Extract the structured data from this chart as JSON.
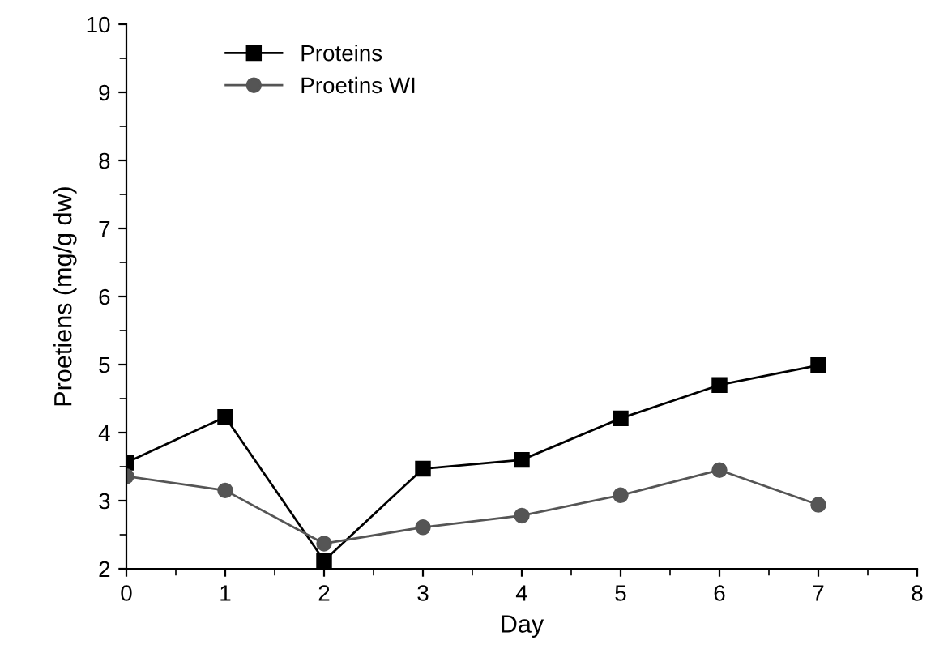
{
  "chart_data": {
    "type": "line",
    "xlabel": "Day",
    "ylabel": "Proetiens (mg/g dw)",
    "x": [
      0,
      1,
      2,
      3,
      4,
      5,
      6,
      7
    ],
    "series": [
      {
        "name": "Proteins",
        "color": "#000000",
        "marker": "square",
        "values": [
          3.56,
          4.23,
          2.12,
          3.47,
          3.6,
          4.21,
          4.7,
          4.99
        ]
      },
      {
        "name": "Proetins WI",
        "color": "#555555",
        "marker": "circle",
        "values": [
          3.36,
          3.15,
          2.37,
          2.61,
          2.78,
          3.08,
          3.45,
          2.94
        ]
      }
    ],
    "xlim": [
      0,
      8
    ],
    "xticks": [
      0,
      1,
      2,
      3,
      4,
      5,
      6,
      7,
      8
    ],
    "ylim": [
      2,
      10
    ],
    "yticks": [
      2,
      3,
      4,
      5,
      6,
      7,
      8,
      9,
      10
    ],
    "grid": false,
    "legend": "top left",
    "line_style": "solid"
  }
}
